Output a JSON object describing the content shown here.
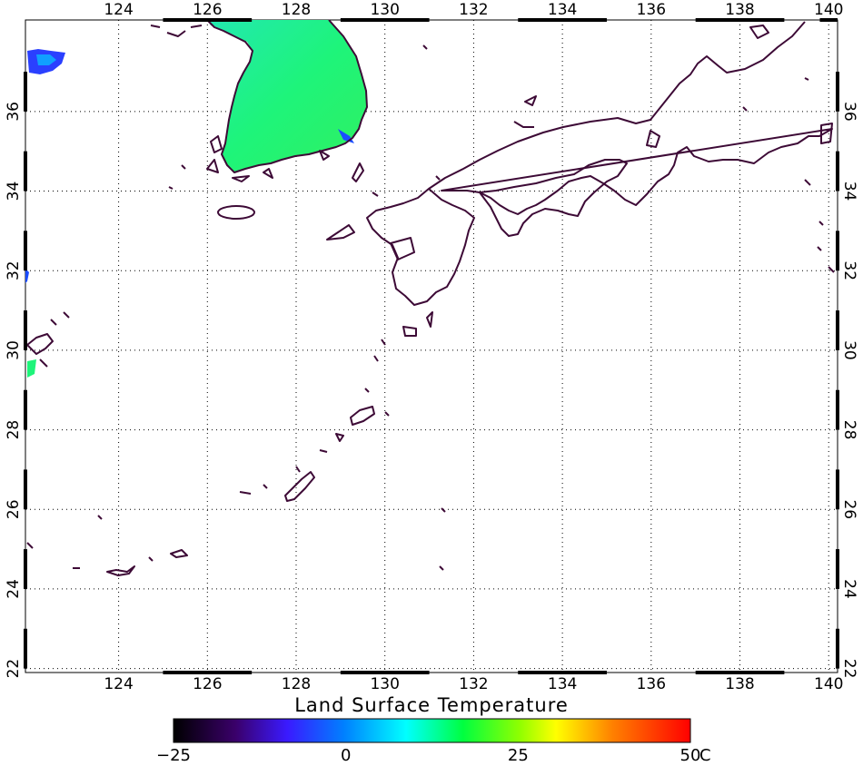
{
  "map": {
    "title": "Land Surface Temperature",
    "lon_ticks": [
      "124",
      "126",
      "128",
      "130",
      "132",
      "134",
      "136",
      "138",
      "140"
    ],
    "lat_ticks": [
      "22",
      "24",
      "26",
      "28",
      "30",
      "32",
      "34",
      "36"
    ],
    "lon_range": [
      121.9,
      140.2
    ],
    "lat_range": [
      21.9,
      38.3
    ],
    "grid": "dotted",
    "coastline_color": "#3d0a36"
  },
  "colorbar": {
    "tick_labels": [
      "-25",
      "0",
      "25",
      "50"
    ],
    "unit": "C",
    "range": [
      -25,
      50
    ],
    "colors": [
      "#000000",
      "#3a006a",
      "#3a1aff",
      "#00e5ff",
      "#00ff40",
      "#ffff00",
      "#ff8000",
      "#ff0000"
    ]
  },
  "land_fill": {
    "korea_color": "#1ef47a",
    "cold_edge_color": "#1a4cff"
  }
}
